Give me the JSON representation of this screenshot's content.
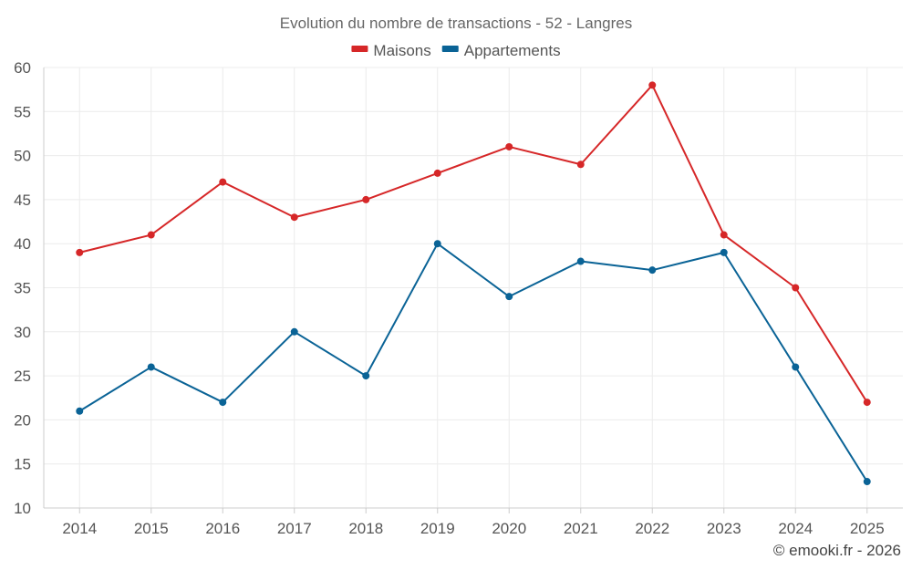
{
  "chart_data": {
    "type": "line",
    "title": "Evolution du nombre de transactions - 52 - Langres",
    "categories": [
      "2014",
      "2015",
      "2016",
      "2017",
      "2018",
      "2019",
      "2020",
      "2021",
      "2022",
      "2023",
      "2024",
      "2025"
    ],
    "series": [
      {
        "name": "Maisons",
        "color": "#d62728",
        "values": [
          39,
          41,
          47,
          43,
          45,
          48,
          51,
          49,
          58,
          41,
          35,
          22
        ]
      },
      {
        "name": "Appartements",
        "color": "#0a6396",
        "values": [
          21,
          26,
          22,
          30,
          25,
          40,
          34,
          38,
          37,
          39,
          26,
          13
        ]
      }
    ],
    "ylim": [
      10,
      60
    ],
    "yticks": [
      10,
      15,
      20,
      25,
      30,
      35,
      40,
      45,
      50,
      55,
      60
    ],
    "xlabel": "",
    "ylabel": "",
    "grid": true,
    "legend_position": "top-center"
  },
  "credit": "© emooki.fr - 2026"
}
